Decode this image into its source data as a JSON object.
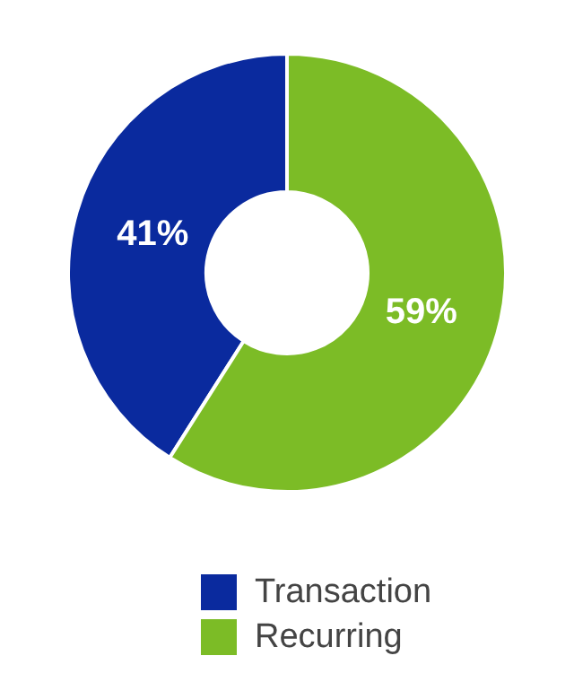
{
  "chart_data": {
    "type": "donut",
    "categories": [
      "Transaction",
      "Recurring"
    ],
    "values": [
      41,
      59
    ],
    "colors": [
      "#0a2a9e",
      "#7cbc26"
    ],
    "value_labels": [
      "41%",
      "59%"
    ],
    "legend": "bottom"
  }
}
